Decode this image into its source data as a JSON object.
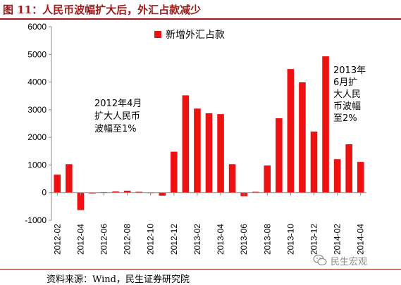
{
  "title": "图 11：人民币波幅扩大后，外汇占款减少",
  "source": "资料来源：Wind，民生证券研究院",
  "watermark": {
    "text": "民生宏观",
    "icon": "wechat-icon"
  },
  "colors": {
    "bar": "#ee1111",
    "title": "#a01818",
    "axis": "#888888"
  },
  "chart_data": {
    "type": "bar",
    "series": [
      {
        "name": "新增外汇占款",
        "values": [
          650,
          1030,
          -630,
          -30,
          20,
          40,
          70,
          30,
          0,
          -110,
          1480,
          3520,
          3040,
          2870,
          2840,
          1030,
          -130,
          30,
          980,
          2690,
          4470,
          3990,
          2210,
          4930,
          1210,
          1750,
          1110
        ]
      }
    ],
    "categories": [
      "2012-02",
      "2012-03",
      "2012-04",
      "2012-05",
      "2012-06",
      "2012-07",
      "2012-08",
      "2012-09",
      "2012-10",
      "2012-11",
      "2012-12",
      "2013-01",
      "2013-02",
      "2013-03",
      "2013-04",
      "2013-05",
      "2013-06",
      "2013-07",
      "2013-08",
      "2013-09",
      "2013-10",
      "2013-11",
      "2013-12",
      "2014-01",
      "2014-02",
      "2014-03",
      "2014-04"
    ],
    "x_tick_labels": [
      "2012-02",
      "2012-04",
      "2012-06",
      "2012-08",
      "2012-10",
      "2012-12",
      "2013-02",
      "2013-04",
      "2013-06",
      "2013-08",
      "2013-10",
      "2013-12",
      "2014-02",
      "2014-04"
    ],
    "y_ticks": [
      "-1000",
      "0",
      "1000",
      "2000",
      "3000",
      "4000",
      "5000",
      "6000"
    ],
    "ylim": [
      -1000,
      6000
    ],
    "legend_position": "top-center",
    "grid": false,
    "annotations": [
      {
        "lines": [
          "2012年4月",
          "扩大人民币",
          "波幅至1%"
        ]
      },
      {
        "lines": [
          "2013年",
          "6月扩",
          "大人民",
          "币波幅",
          "至2%"
        ]
      }
    ]
  }
}
